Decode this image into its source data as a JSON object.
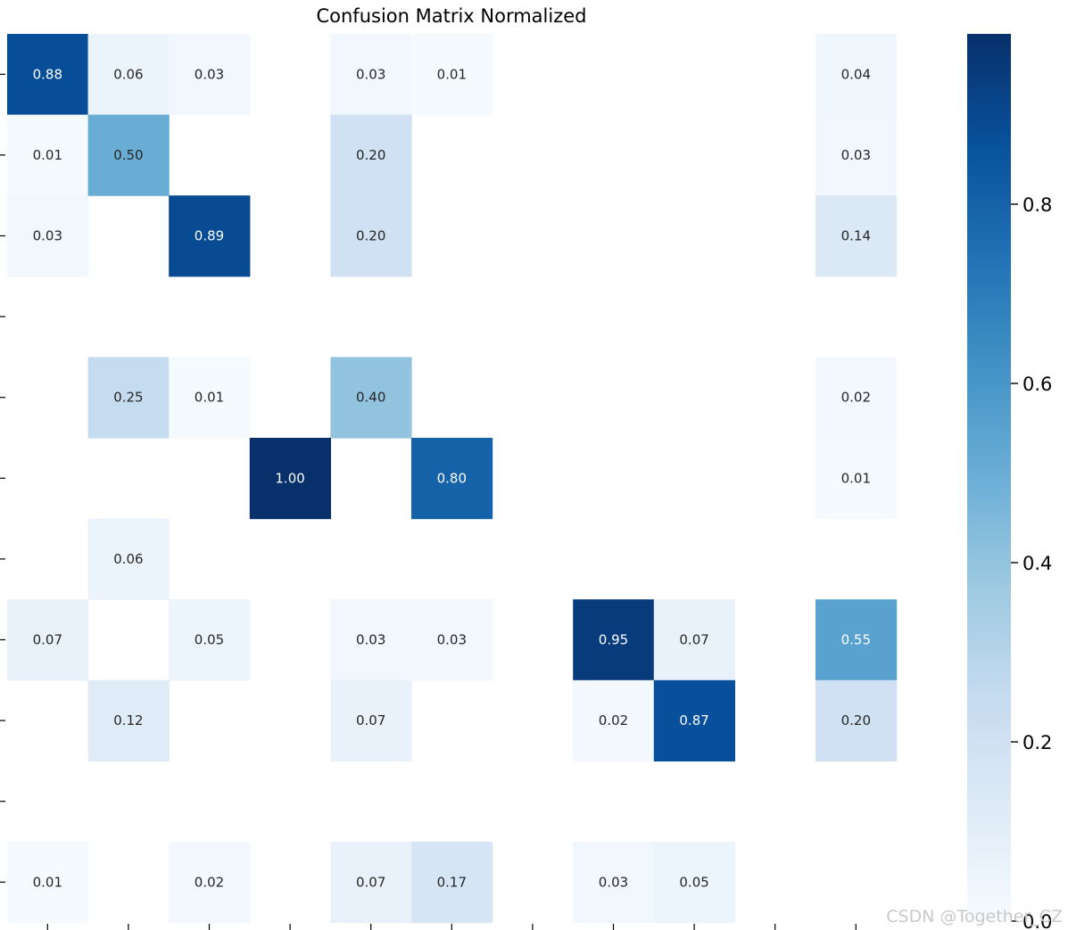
{
  "chart_data": {
    "type": "heatmap",
    "title": "Confusion Matrix Normalized",
    "colormap": "Blues",
    "zero_cells_blank": true,
    "n_rows": 11,
    "n_cols": 11,
    "values": [
      [
        0.88,
        0.06,
        0.03,
        0,
        0.03,
        0.01,
        0,
        0,
        0,
        0,
        0.04
      ],
      [
        0.01,
        0.5,
        0,
        0,
        0.2,
        0,
        0,
        0,
        0,
        0,
        0.03
      ],
      [
        0.03,
        0,
        0.89,
        0,
        0.2,
        0,
        0,
        0,
        0,
        0,
        0.14
      ],
      [
        0,
        0,
        0,
        0,
        0,
        0,
        0,
        0,
        0,
        0,
        0
      ],
      [
        0,
        0.25,
        0.01,
        0,
        0.4,
        0,
        0,
        0,
        0,
        0,
        0.02
      ],
      [
        0,
        0,
        0,
        1.0,
        0,
        0.8,
        0,
        0,
        0,
        0,
        0.01
      ],
      [
        0,
        0.06,
        0,
        0,
        0,
        0,
        0,
        0,
        0,
        0,
        0
      ],
      [
        0.07,
        0,
        0.05,
        0,
        0.03,
        0.03,
        0,
        0.95,
        0.07,
        0,
        0.55
      ],
      [
        0,
        0.12,
        0,
        0,
        0.07,
        0,
        0,
        0.02,
        0.87,
        0,
        0.2
      ],
      [
        0,
        0,
        0,
        0,
        0,
        0,
        0,
        0,
        0,
        0,
        0
      ],
      [
        0.01,
        0,
        0.02,
        0,
        0.07,
        0.17,
        0,
        0.03,
        0.05,
        0,
        0
      ]
    ],
    "colorbar": {
      "vmin": 0.0,
      "vmax": 0.99,
      "ticks": [
        0.0,
        0.2,
        0.4,
        0.6,
        0.8
      ],
      "tick_labels": [
        "0.0",
        "0.2",
        "0.4",
        "0.6",
        "0.8"
      ]
    }
  },
  "watermark": "CSDN @Together_CZ"
}
